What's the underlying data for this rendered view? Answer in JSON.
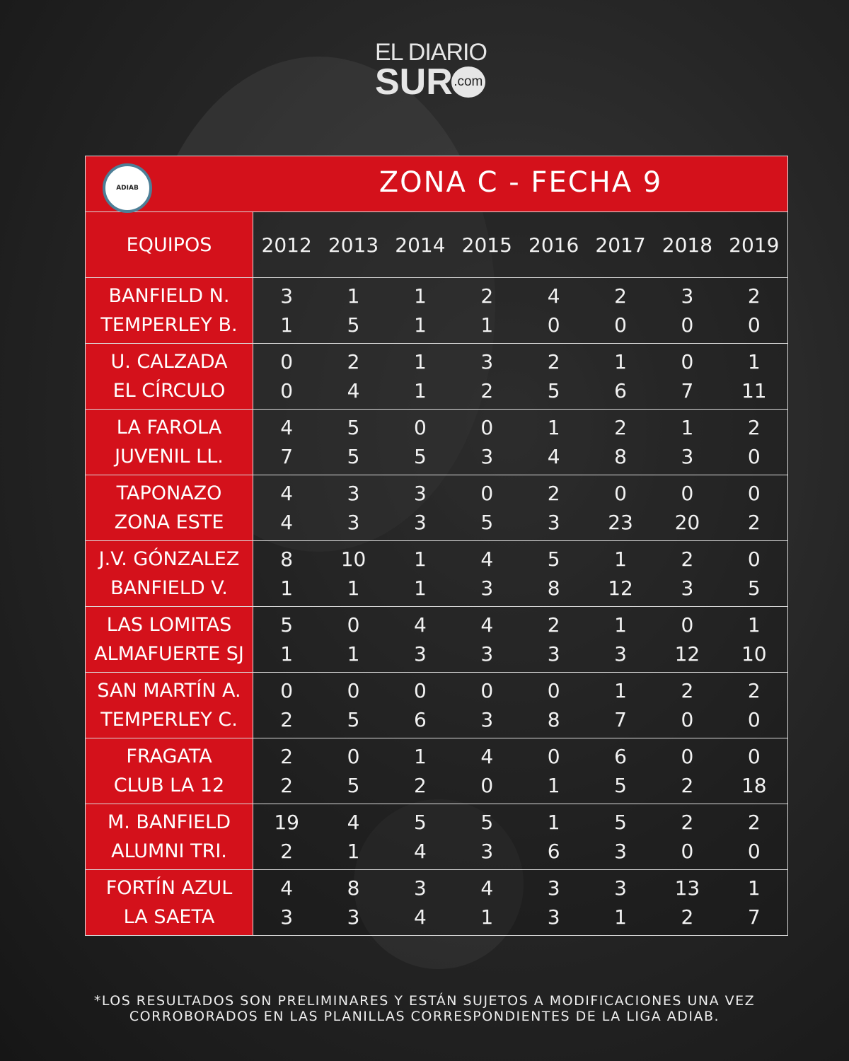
{
  "brand": {
    "line1": "EL DIARIO",
    "line2": "SUR",
    "suffix": ".com"
  },
  "badge": {
    "text": "ADIAB"
  },
  "title": "ZONA C - FECHA 9",
  "header": {
    "teams_label": "EQUIPOS",
    "years": [
      "2012",
      "2013",
      "2014",
      "2015",
      "2016",
      "2017",
      "2018",
      "2019"
    ]
  },
  "matches": [
    {
      "home": "BANFIELD N.",
      "away": "TEMPERLEY B.",
      "home_scores": [
        "3",
        "1",
        "1",
        "2",
        "4",
        "2",
        "3",
        "2"
      ],
      "away_scores": [
        "1",
        "5",
        "1",
        "1",
        "0",
        "0",
        "0",
        "0"
      ]
    },
    {
      "home": "U. CALZADA",
      "away": "EL CÍRCULO",
      "home_scores": [
        "0",
        "2",
        "1",
        "3",
        "2",
        "1",
        "0",
        "1"
      ],
      "away_scores": [
        "0",
        "4",
        "1",
        "2",
        "5",
        "6",
        "7",
        "11"
      ]
    },
    {
      "home": "LA FAROLA",
      "away": "JUVENIL LL.",
      "home_scores": [
        "4",
        "5",
        "0",
        "0",
        "1",
        "2",
        "1",
        "2"
      ],
      "away_scores": [
        "7",
        "5",
        "5",
        "3",
        "4",
        "8",
        "3",
        "0"
      ]
    },
    {
      "home": "TAPONAZO",
      "away": "ZONA ESTE",
      "home_scores": [
        "4",
        "3",
        "3",
        "0",
        "2",
        "0",
        "0",
        "0"
      ],
      "away_scores": [
        "4",
        "3",
        "3",
        "5",
        "3",
        "23",
        "20",
        "2"
      ]
    },
    {
      "home": "J.V. GÓNZALEZ",
      "away": "BANFIELD V.",
      "home_scores": [
        "8",
        "10",
        "1",
        "4",
        "5",
        "1",
        "2",
        "0"
      ],
      "away_scores": [
        "1",
        "1",
        "1",
        "3",
        "8",
        "12",
        "3",
        "5"
      ]
    },
    {
      "home": "LAS LOMITAS",
      "away": "ALMAFUERTE SJ",
      "home_scores": [
        "5",
        "0",
        "4",
        "4",
        "2",
        "1",
        "0",
        "1"
      ],
      "away_scores": [
        "1",
        "1",
        "3",
        "3",
        "3",
        "3",
        "12",
        "10"
      ]
    },
    {
      "home": "SAN MARTÍN A.",
      "away": "TEMPERLEY C.",
      "home_scores": [
        "0",
        "0",
        "0",
        "0",
        "0",
        "1",
        "2",
        "2"
      ],
      "away_scores": [
        "2",
        "5",
        "6",
        "3",
        "8",
        "7",
        "0",
        "0"
      ]
    },
    {
      "home": "FRAGATA",
      "away": "CLUB LA 12",
      "home_scores": [
        "2",
        "0",
        "1",
        "4",
        "0",
        "6",
        "0",
        "0"
      ],
      "away_scores": [
        "2",
        "5",
        "2",
        "0",
        "1",
        "5",
        "2",
        "18"
      ]
    },
    {
      "home": "M. BANFIELD",
      "away": "ALUMNI TRI.",
      "home_scores": [
        "19",
        "4",
        "5",
        "5",
        "1",
        "5",
        "2",
        "2"
      ],
      "away_scores": [
        "2",
        "1",
        "4",
        "3",
        "6",
        "3",
        "0",
        "0"
      ]
    },
    {
      "home": "FORTÍN AZUL",
      "away": "LA SAETA",
      "home_scores": [
        "4",
        "8",
        "3",
        "4",
        "3",
        "3",
        "13",
        "1"
      ],
      "away_scores": [
        "3",
        "3",
        "4",
        "1",
        "3",
        "1",
        "2",
        "7"
      ]
    }
  ],
  "footer": {
    "line1": "*LOS RESULTADOS SON PRELIMINARES Y ESTÁN SUJETOS A MODIFICACIONES UNA VEZ",
    "line2": "CORROBORADOS EN LAS PLANILLAS CORRESPONDIENTES DE LA LIGA ADIAB."
  },
  "colors": {
    "accent": "#d4111b",
    "badge_ring": "#4d7f97"
  }
}
